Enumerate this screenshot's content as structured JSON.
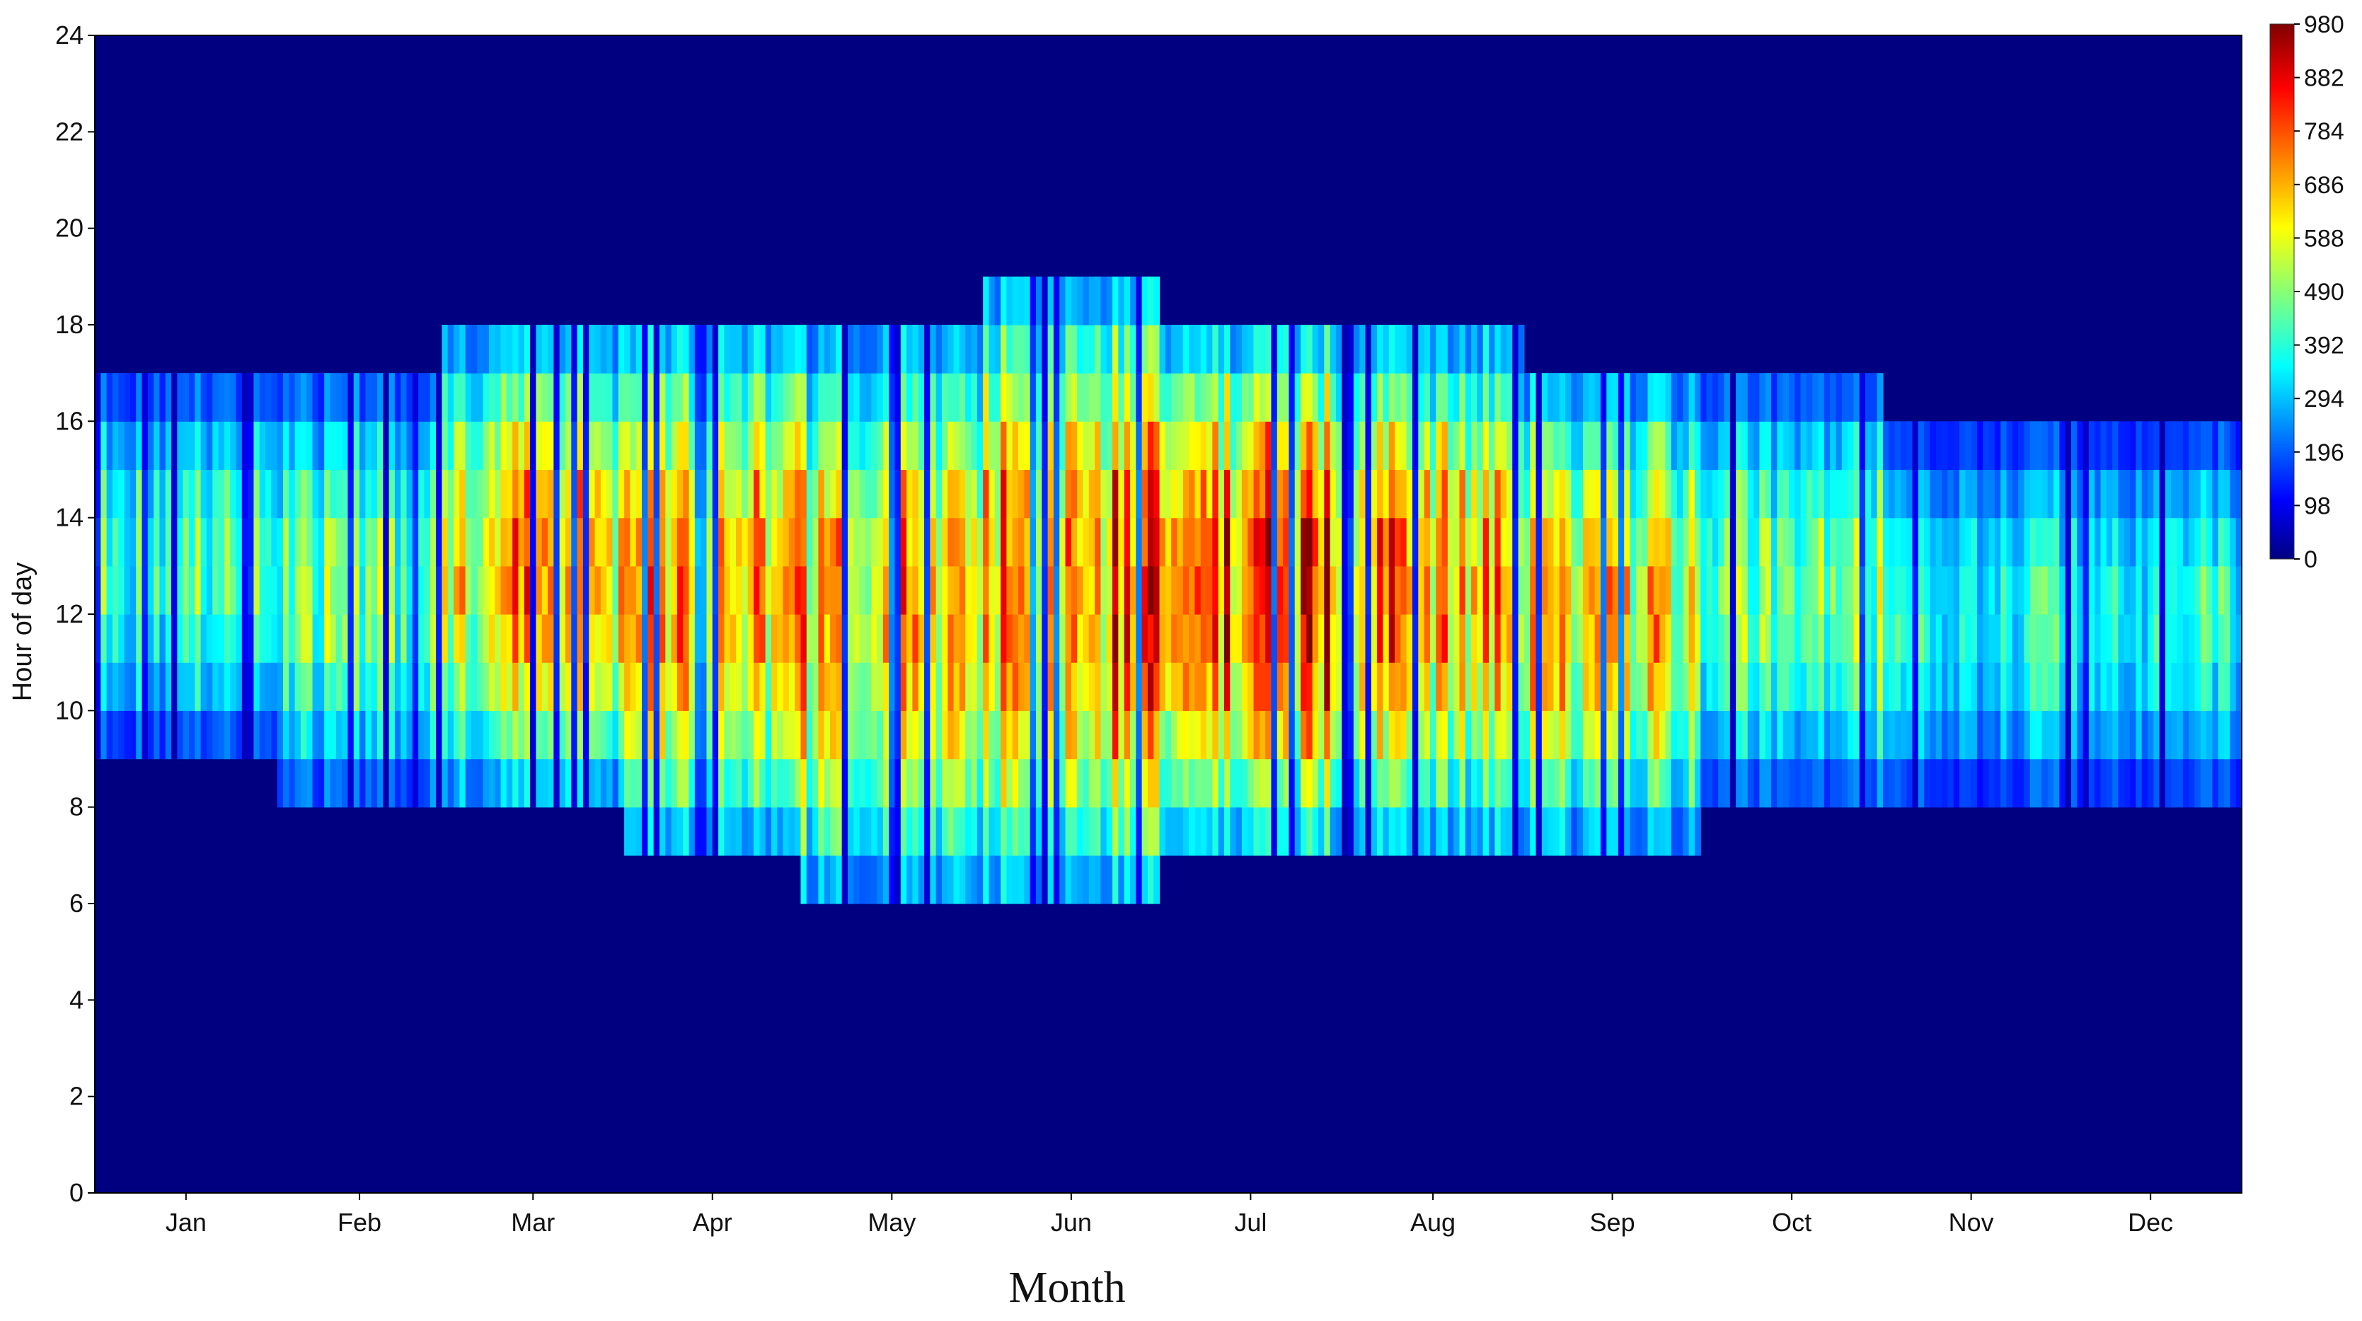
{
  "chart_data": {
    "type": "heatmap",
    "title": "",
    "xlabel": "Month",
    "ylabel": "Hour of day",
    "x_tick_labels": [
      "Jan",
      "Feb",
      "Mar",
      "Apr",
      "May",
      "Jun",
      "Jul",
      "Aug",
      "Sep",
      "Oct",
      "Nov",
      "Dec"
    ],
    "y_tick_labels": [
      "0",
      "2",
      "4",
      "6",
      "8",
      "10",
      "12",
      "14",
      "16",
      "18",
      "20",
      "22",
      "24"
    ],
    "ylim": [
      0,
      24
    ],
    "days": 365,
    "hours": 24,
    "colormap": "jet",
    "colorbar": {
      "min": 0,
      "max": 980,
      "tick_labels": [
        "0",
        "98",
        "196",
        "294",
        "392",
        "490",
        "588",
        "686",
        "784",
        "882",
        "980"
      ]
    },
    "background_color": "#000080",
    "daylight_window_by_month": [
      {
        "month": "Jan",
        "start_hour": 9,
        "end_hour": 17
      },
      {
        "month": "Feb",
        "start_hour": 8,
        "end_hour": 17
      },
      {
        "month": "Mar",
        "start_hour": 8,
        "end_hour": 18
      },
      {
        "month": "Apr",
        "start_hour": 7,
        "end_hour": 18
      },
      {
        "month": "May",
        "start_hour": 6,
        "end_hour": 18
      },
      {
        "month": "Jun",
        "start_hour": 6,
        "end_hour": 19
      },
      {
        "month": "Jul",
        "start_hour": 7,
        "end_hour": 18
      },
      {
        "month": "Aug",
        "start_hour": 7,
        "end_hour": 18
      },
      {
        "month": "Sep",
        "start_hour": 7,
        "end_hour": 17
      },
      {
        "month": "Oct",
        "start_hour": 8,
        "end_hour": 17
      },
      {
        "month": "Nov",
        "start_hour": 8,
        "end_hour": 16
      },
      {
        "month": "Dec",
        "start_hour": 8,
        "end_hour": 16
      }
    ],
    "typical_midday_value_by_month": [
      {
        "month": "Jan",
        "value": 420
      },
      {
        "month": "Feb",
        "value": 440
      },
      {
        "month": "Mar",
        "value": 620
      },
      {
        "month": "Apr",
        "value": 700
      },
      {
        "month": "May",
        "value": 640
      },
      {
        "month": "Jun",
        "value": 700
      },
      {
        "month": "Jul",
        "value": 760
      },
      {
        "month": "Aug",
        "value": 680
      },
      {
        "month": "Sep",
        "value": 600
      },
      {
        "month": "Oct",
        "value": 480
      },
      {
        "month": "Nov",
        "value": 390
      },
      {
        "month": "Dec",
        "value": 380
      }
    ]
  }
}
